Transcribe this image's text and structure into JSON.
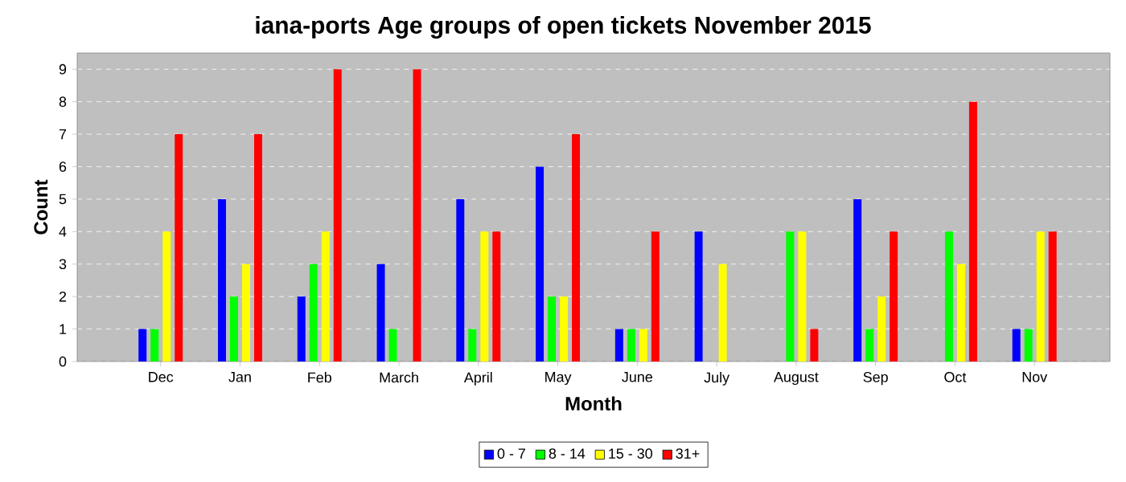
{
  "chart_data": {
    "type": "bar",
    "title": "iana-ports Age groups of open tickets November 2015",
    "xlabel": "Month",
    "ylabel": "Count",
    "categories": [
      "Dec",
      "Jan",
      "Feb",
      "March",
      "April",
      "May",
      "June",
      "July",
      "August",
      "Sep",
      "Oct",
      "Nov"
    ],
    "series": [
      {
        "name": "0 - 7",
        "color": "#0000ff",
        "values": [
          1,
          5,
          2,
          3,
          5,
          6,
          1,
          4,
          0,
          5,
          0,
          1
        ]
      },
      {
        "name": "8 - 14",
        "color": "#00ff00",
        "values": [
          1,
          2,
          3,
          1,
          1,
          2,
          1,
          0,
          4,
          1,
          4,
          1
        ]
      },
      {
        "name": "15 - 30",
        "color": "#ffff00",
        "values": [
          4,
          3,
          4,
          0,
          4,
          2,
          1,
          3,
          4,
          2,
          3,
          4
        ]
      },
      {
        "name": "31+",
        "color": "#ff0000",
        "values": [
          7,
          7,
          9,
          9,
          4,
          7,
          4,
          0,
          1,
          4,
          8,
          4
        ]
      }
    ],
    "ylim": [
      0,
      9.5
    ],
    "yticks": [
      0,
      1,
      2,
      3,
      4,
      5,
      6,
      7,
      8,
      9
    ],
    "grid": "y",
    "legend": "bottom"
  }
}
